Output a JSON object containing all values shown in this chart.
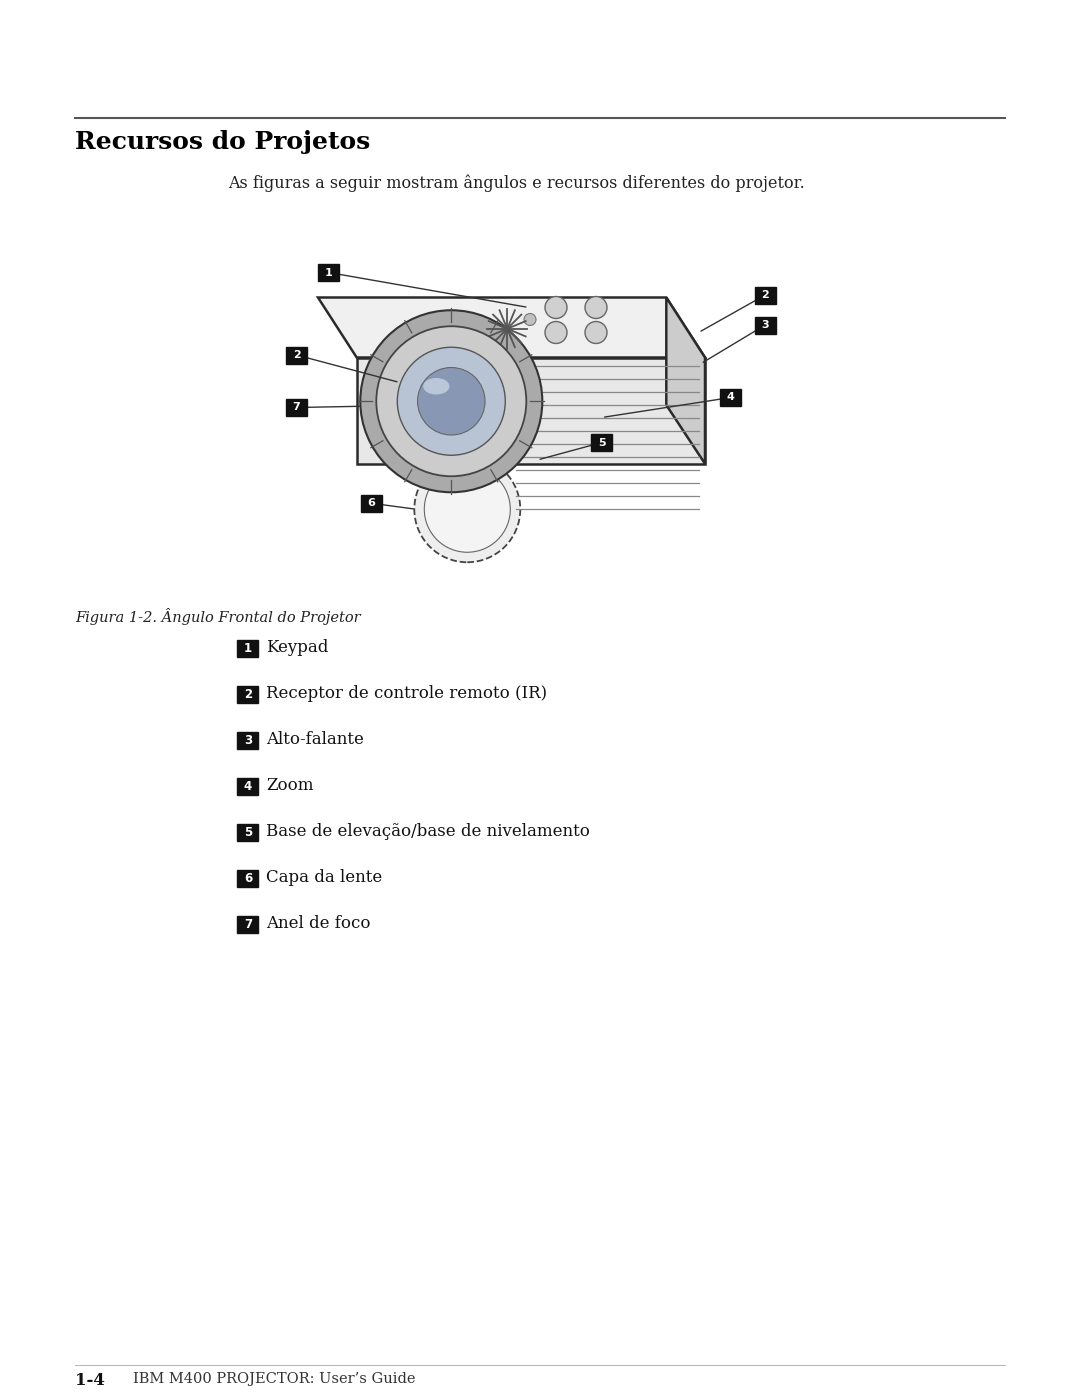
{
  "page_bg": "#ffffff",
  "title": "Recursos do Projetos",
  "subtitle": "As figuras a seguir mostram ângulos e recursos diferentes do projetor.",
  "figure_caption": "Figura 1-2. Ângulo Frontal do Projetor",
  "footer_bold": "1-4",
  "footer_text": "IBM M400 PROJECTOR: User’s Guide",
  "items": [
    {
      "num": "1",
      "label": "Keypad"
    },
    {
      "num": "2",
      "label": "Receptor de controle remoto (IR)"
    },
    {
      "num": "3",
      "label": "Alto-falante"
    },
    {
      "num": "4",
      "label": "Zoom"
    },
    {
      "num": "5",
      "label": "Base de elevação/base de nivelamento"
    },
    {
      "num": "6",
      "label": "Capa da lente"
    },
    {
      "num": "7",
      "label": "Anel de foco"
    }
  ]
}
